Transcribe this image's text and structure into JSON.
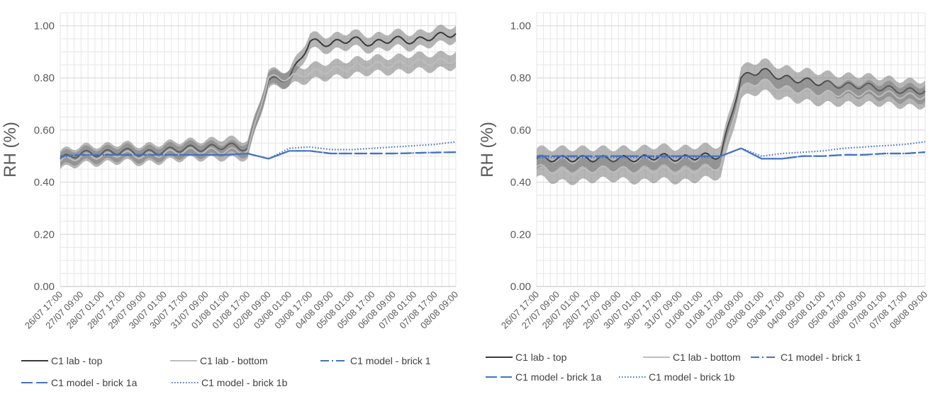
{
  "chart_data": [
    {
      "type": "line",
      "title": "",
      "xlabel": "",
      "ylabel": "RH (%)",
      "ylim": [
        0,
        1.05
      ],
      "yticks": [
        "0.00",
        "0.20",
        "0.40",
        "0.60",
        "0.80",
        "1.00"
      ],
      "x": [
        "26/07 17:00",
        "27/07 09:00",
        "28/07 01:00",
        "28/07 17:00",
        "29/07 09:00",
        "30/07 01:00",
        "30/07 17:00",
        "31/07 09:00",
        "01/08 01:00",
        "01/08 17:00",
        "02/08 09:00",
        "03/08 01:00",
        "03/08 17:00",
        "04/08 09:00",
        "05/08 01:00",
        "05/08 17:00",
        "06/08 09:00",
        "07/08 01:00",
        "07/08 17:00",
        "08/08 09:00"
      ],
      "grid": true,
      "legend_position": "bottom",
      "series": [
        {
          "name": "C1 lab - top",
          "style": "solid",
          "color": "#3a3a3a",
          "band": 0.03,
          "values": [
            0.49,
            0.51,
            0.51,
            0.52,
            0.51,
            0.52,
            0.53,
            0.53,
            0.54,
            0.53,
            0.79,
            0.8,
            0.94,
            0.93,
            0.95,
            0.93,
            0.95,
            0.94,
            0.96,
            0.97
          ]
        },
        {
          "name": "C1 lab - bottom",
          "style": "solid",
          "color": "#bdbdbd",
          "band": 0.03,
          "values": [
            0.48,
            0.5,
            0.5,
            0.51,
            0.5,
            0.51,
            0.52,
            0.52,
            0.52,
            0.52,
            0.8,
            0.8,
            0.82,
            0.83,
            0.84,
            0.85,
            0.85,
            0.86,
            0.86,
            0.87
          ]
        },
        {
          "name": "C1 model - brick 1",
          "style": "dashdot",
          "color": "#4472c4",
          "values": [
            0.5,
            0.505,
            0.505,
            0.505,
            0.505,
            0.505,
            0.505,
            0.505,
            0.505,
            0.51,
            0.49,
            0.52,
            0.52,
            0.51,
            0.51,
            0.51,
            0.51,
            0.512,
            0.514,
            0.515
          ]
        },
        {
          "name": "C1 model - brick 1a",
          "style": "dashed",
          "color": "#4472c4",
          "values": [
            0.5,
            0.505,
            0.505,
            0.505,
            0.505,
            0.505,
            0.505,
            0.505,
            0.505,
            0.51,
            0.49,
            0.52,
            0.52,
            0.51,
            0.51,
            0.51,
            0.51,
            0.512,
            0.514,
            0.515
          ]
        },
        {
          "name": "C1 model - brick 1b",
          "style": "dotted",
          "color": "#4472c4",
          "values": [
            0.495,
            0.505,
            0.505,
            0.505,
            0.505,
            0.505,
            0.505,
            0.505,
            0.505,
            0.51,
            0.49,
            0.53,
            0.535,
            0.525,
            0.525,
            0.53,
            0.535,
            0.54,
            0.545,
            0.555
          ]
        }
      ]
    },
    {
      "type": "line",
      "title": "",
      "xlabel": "",
      "ylabel": "RH (%)",
      "ylim": [
        0,
        1.05
      ],
      "yticks": [
        "0.00",
        "0.20",
        "0.40",
        "0.60",
        "0.80",
        "1.00"
      ],
      "x": [
        "26/07 17:00",
        "27/07 09:00",
        "28/07 01:00",
        "28/07 17:00",
        "29/07 09:00",
        "30/07 01:00",
        "30/07 17:00",
        "31/07 09:00",
        "01/08 01:00",
        "01/08 17:00",
        "02/08 09:00",
        "03/08 01:00",
        "03/08 17:00",
        "04/08 09:00",
        "05/08 01:00",
        "05/08 17:00",
        "06/08 09:00",
        "07/08 01:00",
        "07/08 17:00",
        "08/08 09:00"
      ],
      "grid": true,
      "legend_position": "bottom",
      "series": [
        {
          "name": "C1 lab - top",
          "style": "solid",
          "color": "#3a3a3a",
          "band": 0.04,
          "values": [
            0.49,
            0.49,
            0.49,
            0.49,
            0.49,
            0.49,
            0.5,
            0.49,
            0.5,
            0.5,
            0.8,
            0.83,
            0.8,
            0.79,
            0.78,
            0.77,
            0.77,
            0.76,
            0.75,
            0.75
          ]
        },
        {
          "name": "C1 lab - bottom",
          "style": "solid",
          "color": "#bdbdbd",
          "band": 0.04,
          "values": [
            0.46,
            0.44,
            0.44,
            0.45,
            0.45,
            0.44,
            0.45,
            0.44,
            0.45,
            0.46,
            0.76,
            0.79,
            0.76,
            0.75,
            0.74,
            0.74,
            0.74,
            0.74,
            0.73,
            0.73
          ]
        },
        {
          "name": "C1 model - brick 1",
          "style": "dashdot",
          "color": "#4472c4",
          "values": [
            0.5,
            0.5,
            0.5,
            0.5,
            0.5,
            0.5,
            0.5,
            0.5,
            0.5,
            0.5,
            0.53,
            0.49,
            0.49,
            0.5,
            0.5,
            0.505,
            0.505,
            0.51,
            0.51,
            0.515
          ]
        },
        {
          "name": "C1 model - brick 1a",
          "style": "dashed",
          "color": "#4472c4",
          "values": [
            0.5,
            0.5,
            0.5,
            0.5,
            0.5,
            0.5,
            0.5,
            0.5,
            0.5,
            0.5,
            0.53,
            0.49,
            0.49,
            0.5,
            0.5,
            0.505,
            0.505,
            0.51,
            0.51,
            0.515
          ]
        },
        {
          "name": "C1 model - brick 1b",
          "style": "dotted",
          "color": "#4472c4",
          "values": [
            0.495,
            0.495,
            0.495,
            0.495,
            0.495,
            0.495,
            0.495,
            0.495,
            0.495,
            0.5,
            0.53,
            0.5,
            0.51,
            0.515,
            0.52,
            0.53,
            0.535,
            0.54,
            0.545,
            0.555
          ]
        }
      ]
    }
  ]
}
